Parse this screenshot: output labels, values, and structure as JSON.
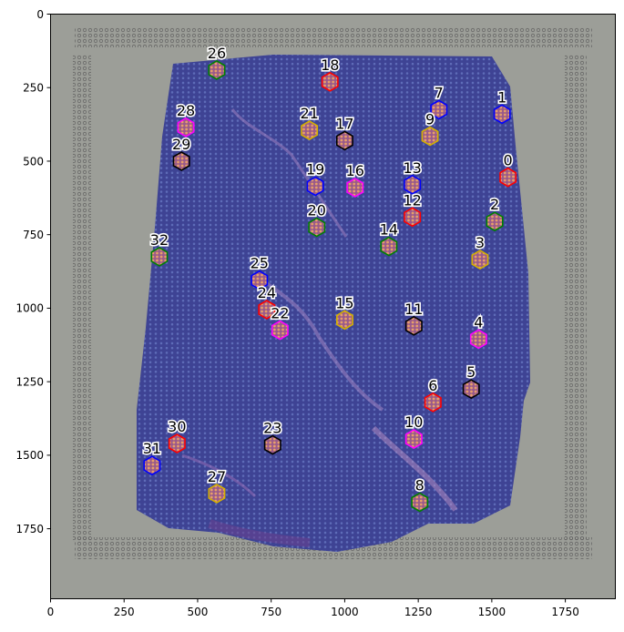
{
  "image": {
    "x_ticks": [
      "0",
      "250",
      "500",
      "750",
      "1000",
      "1250",
      "1500",
      "1750"
    ],
    "y_ticks": [
      "0",
      "250",
      "500",
      "750",
      "1000",
      "1250",
      "1500",
      "1750"
    ],
    "x_range": [
      0,
      1920
    ],
    "y_range": [
      0,
      1985
    ]
  },
  "colors": {
    "red": "#ff0000",
    "blue": "#0000ff",
    "green": "#008000",
    "yellow": "#d4b000",
    "magenta": "#ff00ff",
    "black": "#000000"
  },
  "clusters": [
    {
      "label": "0",
      "x": 1555,
      "y": 555,
      "color": "red"
    },
    {
      "label": "1",
      "x": 1535,
      "y": 340,
      "color": "blue"
    },
    {
      "label": "2",
      "x": 1510,
      "y": 705,
      "color": "green"
    },
    {
      "label": "3",
      "x": 1460,
      "y": 835,
      "color": "yellow"
    },
    {
      "label": "4",
      "x": 1455,
      "y": 1105,
      "color": "magenta"
    },
    {
      "label": "5",
      "x": 1430,
      "y": 1275,
      "color": "black"
    },
    {
      "label": "6",
      "x": 1300,
      "y": 1320,
      "color": "red"
    },
    {
      "label": "7",
      "x": 1320,
      "y": 325,
      "color": "blue"
    },
    {
      "label": "8",
      "x": 1255,
      "y": 1660,
      "color": "green"
    },
    {
      "label": "9",
      "x": 1290,
      "y": 415,
      "color": "yellow"
    },
    {
      "label": "10",
      "x": 1235,
      "y": 1445,
      "color": "magenta"
    },
    {
      "label": "11",
      "x": 1235,
      "y": 1060,
      "color": "black"
    },
    {
      "label": "12",
      "x": 1230,
      "y": 690,
      "color": "red"
    },
    {
      "label": "13",
      "x": 1230,
      "y": 580,
      "color": "blue"
    },
    {
      "label": "14",
      "x": 1150,
      "y": 790,
      "color": "green"
    },
    {
      "label": "15",
      "x": 1000,
      "y": 1040,
      "color": "yellow"
    },
    {
      "label": "16",
      "x": 1035,
      "y": 590,
      "color": "magenta"
    },
    {
      "label": "17",
      "x": 1000,
      "y": 430,
      "color": "black"
    },
    {
      "label": "18",
      "x": 950,
      "y": 230,
      "color": "red"
    },
    {
      "label": "19",
      "x": 900,
      "y": 585,
      "color": "blue"
    },
    {
      "label": "20",
      "x": 905,
      "y": 725,
      "color": "green"
    },
    {
      "label": "21",
      "x": 880,
      "y": 395,
      "color": "yellow"
    },
    {
      "label": "22",
      "x": 780,
      "y": 1075,
      "color": "magenta"
    },
    {
      "label": "23",
      "x": 755,
      "y": 1465,
      "color": "black"
    },
    {
      "label": "24",
      "x": 735,
      "y": 1005,
      "color": "red"
    },
    {
      "label": "25",
      "x": 710,
      "y": 905,
      "color": "blue"
    },
    {
      "label": "26",
      "x": 565,
      "y": 190,
      "color": "green"
    },
    {
      "label": "27",
      "x": 565,
      "y": 1630,
      "color": "yellow"
    },
    {
      "label": "28",
      "x": 460,
      "y": 385,
      "color": "magenta"
    },
    {
      "label": "29",
      "x": 445,
      "y": 500,
      "color": "black"
    },
    {
      "label": "30",
      "x": 430,
      "y": 1460,
      "color": "red"
    },
    {
      "label": "31",
      "x": 345,
      "y": 1535,
      "color": "blue"
    },
    {
      "label": "32",
      "x": 370,
      "y": 825,
      "color": "green"
    }
  ]
}
